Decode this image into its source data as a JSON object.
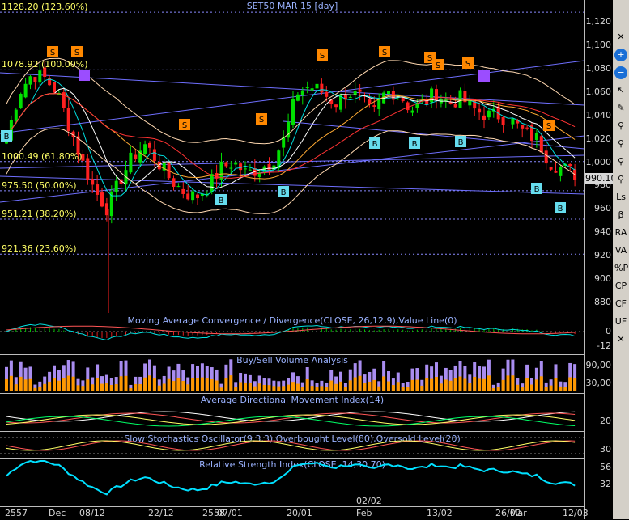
{
  "chart_title": "SET50 MAR 15   [day]",
  "price_axis": {
    "labels": [
      "1,120",
      "1,100",
      "1,080",
      "1,060",
      "1,040",
      "1,020",
      "1,000",
      "980",
      "960",
      "940",
      "920",
      "900",
      "880"
    ],
    "values": [
      1120,
      1100,
      1080,
      1060,
      1040,
      1020,
      1000,
      980,
      960,
      940,
      920,
      900,
      880
    ],
    "range": [
      871,
      1127
    ]
  },
  "last_price": "990.10",
  "fib_levels": [
    {
      "label": "1128.20 (123.60%)",
      "value": 1128.2
    },
    {
      "label": "1078.92 (100.00%)",
      "value": 1078.92
    },
    {
      "label": "1000.49 (61.80%)",
      "value": 1000.49
    },
    {
      "label": "975.50 (50.00%)",
      "value": 975.5
    },
    {
      "label": "951.21 (38.20%)",
      "value": 951.21
    },
    {
      "label": "921.36 (23.60%)",
      "value": 921.36
    }
  ],
  "signals": {
    "sell_label": "S",
    "buy_label": "B"
  },
  "panels": {
    "macd": {
      "title": "Moving Average Convergence / Divergence(CLOSE, 26,12,9),Value Line(0)",
      "labels": [
        "0",
        "-12"
      ]
    },
    "volume": {
      "title": "Buy/Sell Volume Analysis",
      "labels": [
        "90,00",
        "30,00"
      ]
    },
    "adx": {
      "title": "Average Directional Movement Index(14)",
      "labels": [
        "20"
      ]
    },
    "stoch": {
      "title": "Slow Stochastics Oscillator(9,3,3),Overbought Level(80),Oversold Level(20)",
      "labels": [
        "30"
      ]
    },
    "rsi": {
      "title": "Relative Strength Index(CLOSE, 14,30,70)",
      "labels": [
        "56",
        "32"
      ]
    }
  },
  "x_axis": {
    "dates": [
      "08/12",
      "22/12",
      "07/01",
      "20/01",
      "02/02",
      "13/02",
      "26/02",
      "12/03"
    ],
    "periods": [
      "2557",
      "Dec",
      "2558",
      "Feb",
      "Mar"
    ]
  },
  "toolbar": {
    "buttons": [
      "✕",
      "+",
      "−",
      "↖",
      "✎",
      "⚲",
      "⚲",
      "⚲",
      "⚲",
      "Ls",
      "β",
      "RA",
      "VA",
      "%P",
      "CP",
      "CF",
      "UF",
      "✕"
    ]
  },
  "colors": {
    "up": "#00e000",
    "down": "#ff2020",
    "fib": "#ffff66",
    "title": "#9ab2ff"
  }
}
